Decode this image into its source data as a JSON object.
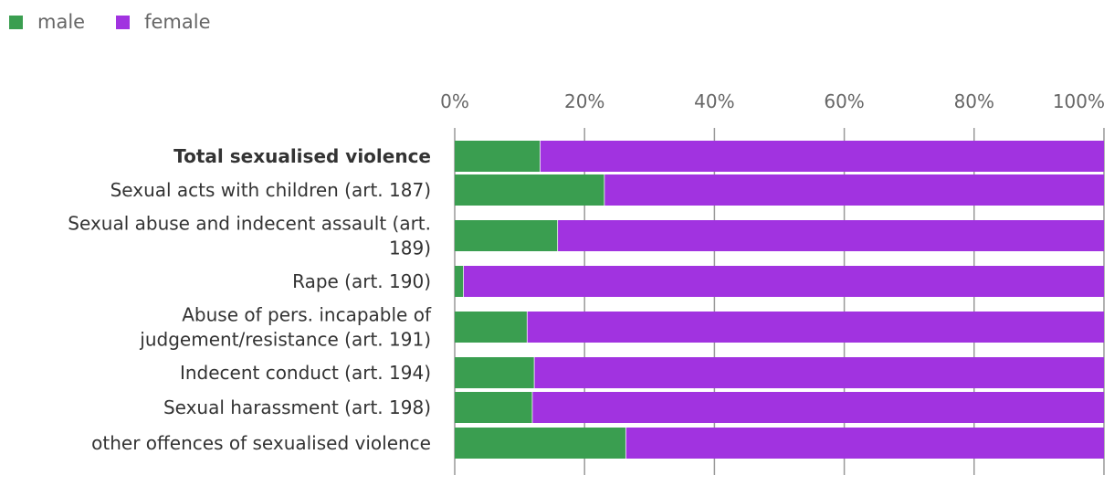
{
  "chart_data": {
    "type": "bar",
    "orientation": "horizontal",
    "stacked": "percent",
    "title": "",
    "xlabel": "",
    "ylabel": "",
    "xlim": [
      0,
      100
    ],
    "xticks": [
      "0%",
      "20%",
      "40%",
      "60%",
      "80%",
      "100%"
    ],
    "grid": true,
    "legend_position": "top-left",
    "categories": [
      {
        "label": "Total sexualised violence",
        "bold": true
      },
      {
        "label": "Sexual acts with children (art. 187)",
        "bold": false
      },
      {
        "label": "Sexual abuse and indecent assault (art. 189)",
        "lines": [
          "Sexual abuse and indecent assault (art.",
          "189)"
        ],
        "bold": false
      },
      {
        "label": "Rape (art. 190)",
        "bold": false
      },
      {
        "label": "Abuse of pers. incapable of judgement/resistance (art. 191)",
        "lines": [
          "Abuse of pers. incapable of",
          "judgement/resistance (art. 191)"
        ],
        "bold": false
      },
      {
        "label": "Indecent conduct (art. 194)",
        "bold": false
      },
      {
        "label": "Sexual harassment (art. 198)",
        "bold": false
      },
      {
        "label": "other offences of sexualised violence",
        "bold": false
      }
    ],
    "series": [
      {
        "name": "male",
        "color": "#3a9e50",
        "values": [
          13.2,
          23.1,
          15.9,
          1.4,
          11.2,
          12.3,
          12.0,
          26.4
        ]
      },
      {
        "name": "female",
        "color": "#a133e0",
        "values": [
          86.8,
          76.9,
          84.1,
          98.6,
          88.8,
          87.7,
          88.0,
          73.6
        ]
      }
    ]
  }
}
